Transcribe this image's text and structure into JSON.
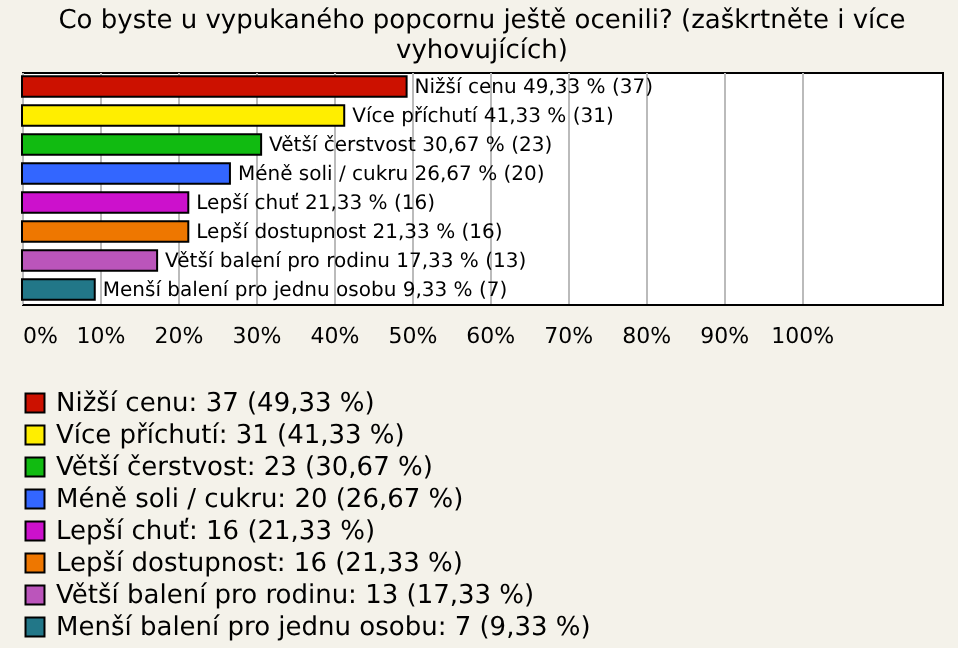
{
  "chart_data": {
    "type": "bar",
    "orientation": "horizontal",
    "title": [
      "Co byste u vypukaného popcornu ještě ocenili? (zaškrtněte i více",
      "vyhovujících)"
    ],
    "categories": [
      null,
      null,
      null,
      null,
      null,
      null,
      null,
      null
    ],
    "series": [
      {
        "name": "Nižší cenu: 37 (49,33 %)",
        "color": "#cc1100",
        "values": [
          49.33,
          null,
          null,
          null,
          null,
          null,
          null,
          null
        ],
        "value_labels": [
          "Nižší cenu 49,33 % (37)",
          null,
          null,
          null,
          null,
          null,
          null,
          null
        ]
      },
      {
        "name": "Více příchutí: 31 (41,33 %)",
        "color": "#ffee00",
        "values": [
          null,
          41.33,
          null,
          null,
          null,
          null,
          null,
          null
        ],
        "value_labels": [
          null,
          "Více příchutí 41,33 % (31)",
          null,
          null,
          null,
          null,
          null,
          null
        ]
      },
      {
        "name": "Větší čerstvost: 23 (30,67 %)",
        "color": "#11bb11",
        "values": [
          null,
          null,
          30.67,
          null,
          null,
          null,
          null,
          null
        ],
        "value_labels": [
          null,
          null,
          "Větší čerstvost 30,67 % (23)",
          null,
          null,
          null,
          null,
          null
        ]
      },
      {
        "name": "Méně soli / cukru: 20 (26,67 %)",
        "color": "#3366ff",
        "values": [
          null,
          null,
          null,
          26.67,
          null,
          null,
          null,
          null
        ],
        "value_labels": [
          null,
          null,
          null,
          "Méně soli / cukru 26,67 % (20)",
          null,
          null,
          null,
          null
        ]
      },
      {
        "name": "Lepší chuť: 16 (21,33 %)",
        "color": "#cc11cc",
        "values": [
          null,
          null,
          null,
          null,
          21.33,
          null,
          null,
          null
        ],
        "value_labels": [
          null,
          null,
          null,
          null,
          "Lepší chuť 21,33 % (16)",
          null,
          null,
          null
        ]
      },
      {
        "name": "Lepší dostupnost: 16 (21,33 %)",
        "color": "#ee7700",
        "values": [
          null,
          null,
          null,
          null,
          null,
          21.33,
          null,
          null
        ],
        "value_labels": [
          null,
          null,
          null,
          null,
          null,
          "Lepší dostupnost 21,33 % (16)",
          null,
          null
        ]
      },
      {
        "name": "Větší balení pro rodinu: 13 (17,33 %)",
        "color": "#bb55bb",
        "values": [
          null,
          null,
          null,
          null,
          null,
          null,
          17.33,
          null
        ],
        "value_labels": [
          null,
          null,
          null,
          null,
          null,
          null,
          "Větší balení pro rodinu 17,33 % (13)",
          null
        ]
      },
      {
        "name": "Menší balení pro jednu osobu: 7 (9,33 %)",
        "color": "#227788",
        "values": [
          null,
          null,
          null,
          null,
          null,
          null,
          null,
          9.33
        ],
        "value_labels": [
          null,
          null,
          null,
          null,
          null,
          null,
          null,
          "Menší balení pro jednu osobu 9,33 % (7)"
        ]
      }
    ],
    "xlim": [
      0,
      118
    ],
    "xticks": [
      {
        "value": 0,
        "label": "0%"
      },
      {
        "value": 10,
        "label": "10%"
      },
      {
        "value": 20,
        "label": "20%"
      },
      {
        "value": 30,
        "label": "30%"
      },
      {
        "value": 40,
        "label": "40%"
      },
      {
        "value": 50,
        "label": "50%"
      },
      {
        "value": 60,
        "label": "60%"
      },
      {
        "value": 70,
        "label": "70%"
      },
      {
        "value": 80,
        "label": "80%"
      },
      {
        "value": 90,
        "label": "90%"
      },
      {
        "value": 100,
        "label": "100%"
      }
    ],
    "grid": "x",
    "legend": "bottom",
    "tick_labels": "x"
  }
}
